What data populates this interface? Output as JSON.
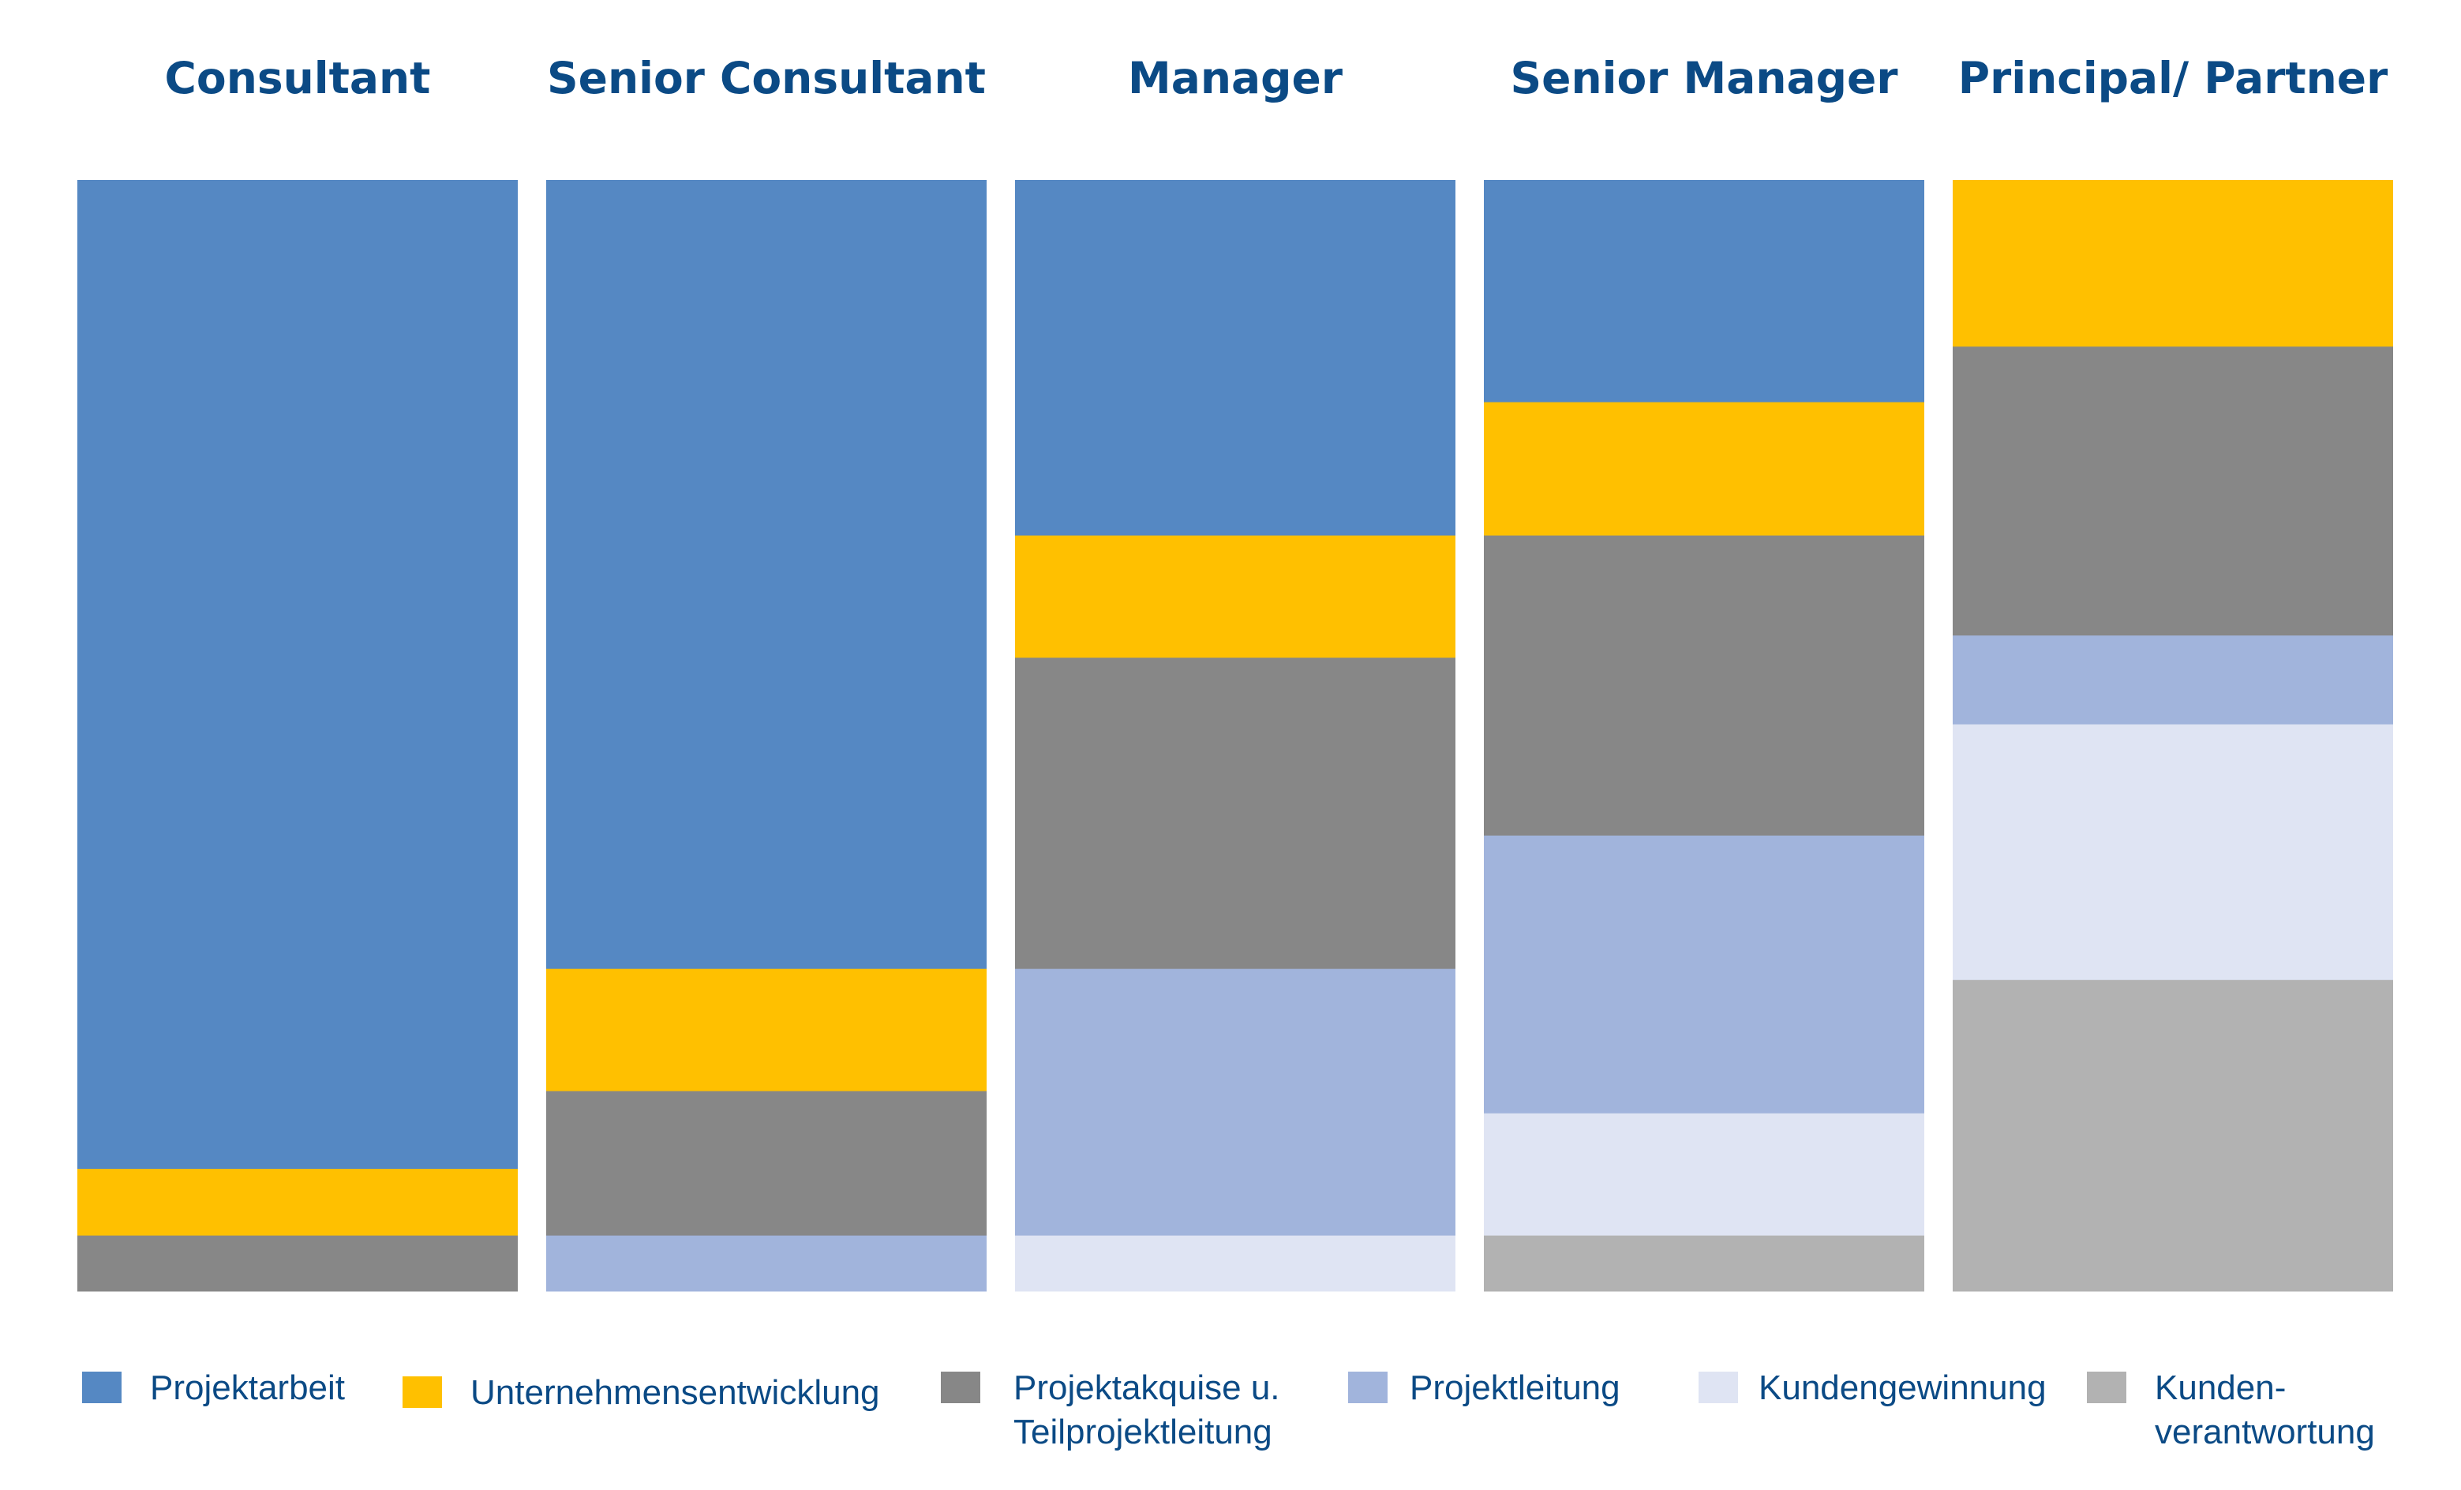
{
  "chart_data": {
    "type": "bar",
    "stacked": true,
    "normalized": true,
    "title": "",
    "xlabel": "",
    "ylabel": "",
    "ylim": [
      0,
      100
    ],
    "categories": [
      "Consultant",
      "Senior Consultant",
      "Manager",
      "Senior Manager",
      "Principal/ Partner"
    ],
    "series": [
      {
        "name": "Projektarbeit",
        "legend_lines": [
          "Projektarbeit"
        ],
        "color": "#5588c3",
        "values": [
          89,
          71,
          32,
          20,
          0
        ]
      },
      {
        "name": "Unternehmensentwicklung",
        "legend_lines": [
          "Unternehmensentwicklung"
        ],
        "color": "#ffc000",
        "values": [
          6,
          11,
          11,
          12,
          15
        ]
      },
      {
        "name": "Projektakquise u. Teilprojektleitung",
        "legend_lines": [
          "Projektakquise u.",
          "Teilprojektleitung"
        ],
        "color": "#878787",
        "values": [
          5,
          13,
          28,
          27,
          26
        ]
      },
      {
        "name": "Projektleitung",
        "legend_lines": [
          "Projektleitung"
        ],
        "color": "#a1b4dc",
        "values": [
          0,
          5,
          24,
          25,
          8
        ]
      },
      {
        "name": "Kundengewinnung",
        "legend_lines": [
          "Kundengewinnung"
        ],
        "color": "#dfe4f3",
        "values": [
          0,
          0,
          5,
          11,
          23
        ]
      },
      {
        "name": "Kunden-verantwortung",
        "legend_lines": [
          "Kunden-",
          "verantwortung"
        ],
        "color": "#b2b2b2",
        "values": [
          0,
          0,
          0,
          5,
          28
        ]
      }
    ],
    "legend_position": "bottom",
    "grid": false
  },
  "colors": {
    "title_text": "#0b4a85",
    "legend_text": "#0b4a85"
  }
}
